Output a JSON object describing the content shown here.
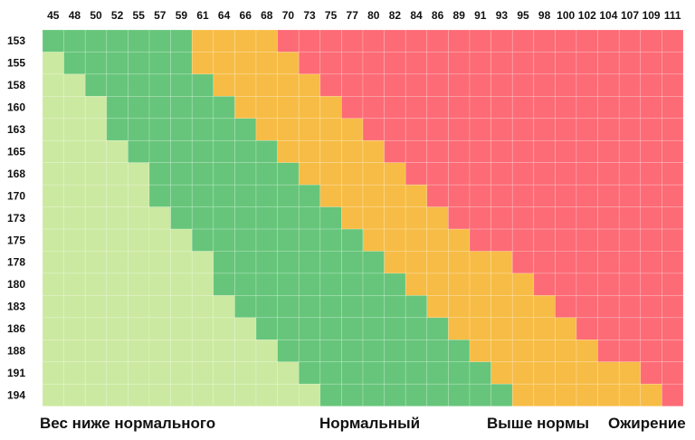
{
  "chart_data": {
    "type": "heatmap",
    "title": "",
    "xlabel": "",
    "ylabel": "",
    "x_categories": [
      "45",
      "48",
      "50",
      "52",
      "55",
      "57",
      "59",
      "61",
      "64",
      "66",
      "68",
      "70",
      "73",
      "75",
      "77",
      "80",
      "82",
      "84",
      "86",
      "89",
      "91",
      "93",
      "95",
      "98",
      "100",
      "102",
      "104",
      "107",
      "109",
      "111"
    ],
    "y_categories": [
      "153",
      "155",
      "158",
      "160",
      "163",
      "165",
      "168",
      "170",
      "173",
      "175",
      "178",
      "180",
      "183",
      "186",
      "188",
      "191",
      "194"
    ],
    "classes": [
      {
        "label": "Вес ниже нормального",
        "color": "#cbe9a0"
      },
      {
        "label": "Нормальный",
        "color": "#66c57a"
      },
      {
        "label": "Выше нормы",
        "color": "#f7bc45"
      },
      {
        "label": "Ожирение",
        "color": "#fd6b76"
      }
    ],
    "boundaries": [
      {
        "height": "153",
        "normal_from": "45",
        "above_from": "61",
        "obese_from": "70"
      },
      {
        "height": "155",
        "normal_from": "48",
        "above_from": "61",
        "obese_from": "73"
      },
      {
        "height": "158",
        "normal_from": "50",
        "above_from": "64",
        "obese_from": "75"
      },
      {
        "height": "160",
        "normal_from": "52",
        "above_from": "66",
        "obese_from": "77"
      },
      {
        "height": "163",
        "normal_from": "52",
        "above_from": "68",
        "obese_from": "80"
      },
      {
        "height": "165",
        "normal_from": "55",
        "above_from": "70",
        "obese_from": "82"
      },
      {
        "height": "168",
        "normal_from": "57",
        "above_from": "73",
        "obese_from": "84"
      },
      {
        "height": "170",
        "normal_from": "57",
        "above_from": "75",
        "obese_from": "86"
      },
      {
        "height": "173",
        "normal_from": "59",
        "above_from": "77",
        "obese_from": "89"
      },
      {
        "height": "175",
        "normal_from": "61",
        "above_from": "80",
        "obese_from": "91"
      },
      {
        "height": "178",
        "normal_from": "64",
        "above_from": "82",
        "obese_from": "95"
      },
      {
        "height": "180",
        "normal_from": "64",
        "above_from": "84",
        "obese_from": "98"
      },
      {
        "height": "183",
        "normal_from": "66",
        "above_from": "86",
        "obese_from": "100"
      },
      {
        "height": "186",
        "normal_from": "68",
        "above_from": "89",
        "obese_from": "102"
      },
      {
        "height": "188",
        "normal_from": "70",
        "above_from": "91",
        "obese_from": "104"
      },
      {
        "height": "191",
        "normal_from": "73",
        "above_from": "93",
        "obese_from": "109"
      },
      {
        "height": "194",
        "normal_from": "75",
        "above_from": "95",
        "obese_from": "111"
      }
    ]
  }
}
